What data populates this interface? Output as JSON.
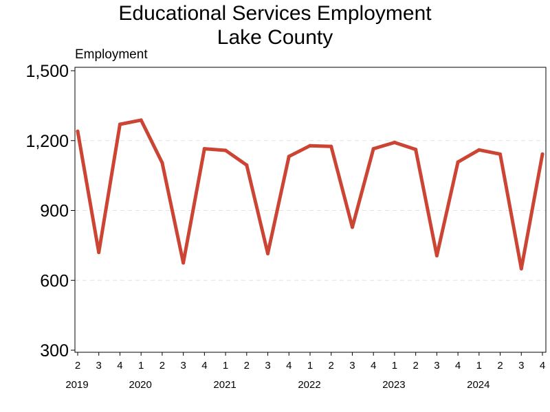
{
  "chart_data": {
    "type": "line",
    "title": "Educational Services Employment",
    "subtitle": "Lake County",
    "ylabel": "Employment",
    "xlabel": "",
    "ylim": [
      300,
      1500
    ],
    "yticks": [
      300,
      600,
      900,
      1200,
      1500
    ],
    "ytick_labels": [
      "300",
      "600",
      "900",
      "1,200",
      "1,500"
    ],
    "grid": "horizontal dashed",
    "line_color": "#cc4433",
    "x_quarters": [
      "2",
      "3",
      "4",
      "1",
      "2",
      "3",
      "4",
      "1",
      "2",
      "3",
      "4",
      "1",
      "2",
      "3",
      "4",
      "1",
      "2",
      "3",
      "4",
      "1",
      "2",
      "3",
      "4"
    ],
    "x_years": [
      {
        "label": "2019",
        "index": 0
      },
      {
        "label": "2020",
        "index": 3
      },
      {
        "label": "2021",
        "index": 7
      },
      {
        "label": "2022",
        "index": 11
      },
      {
        "label": "2023",
        "index": 15
      },
      {
        "label": "2024",
        "index": 19
      }
    ],
    "series": [
      {
        "values": [
          1240,
          720,
          1270,
          1288,
          1105,
          675,
          1165,
          1158,
          1095,
          715,
          1132,
          1178,
          1175,
          828,
          1165,
          1192,
          1162,
          706,
          1108,
          1160,
          1142,
          650,
          1142
        ]
      }
    ]
  }
}
